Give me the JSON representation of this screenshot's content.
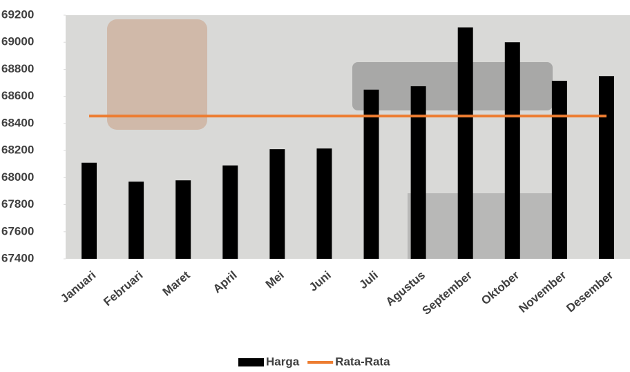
{
  "chart_data": {
    "type": "bar",
    "categories": [
      "Januari",
      "Februari",
      "Maret",
      "April",
      "Mei",
      "Juni",
      "Juli",
      "Agustus",
      "September",
      "Oktober",
      "November",
      "Desember"
    ],
    "series": [
      {
        "name": "Harga",
        "type": "bar",
        "color": "#000000",
        "values": [
          68110,
          67970,
          67980,
          68090,
          68210,
          68215,
          68650,
          68675,
          69110,
          69000,
          68715,
          68750
        ]
      },
      {
        "name": "Rata-Rata",
        "type": "line",
        "color": "#ed7d31",
        "values": [
          68455,
          68455,
          68455,
          68455,
          68455,
          68455,
          68455,
          68455,
          68455,
          68455,
          68455,
          68455
        ]
      }
    ],
    "ylim": [
      67400,
      69200
    ],
    "yticks": [
      67400,
      67600,
      67800,
      68000,
      68200,
      68400,
      68600,
      68800,
      69000,
      69200
    ],
    "legend": "bottom"
  }
}
